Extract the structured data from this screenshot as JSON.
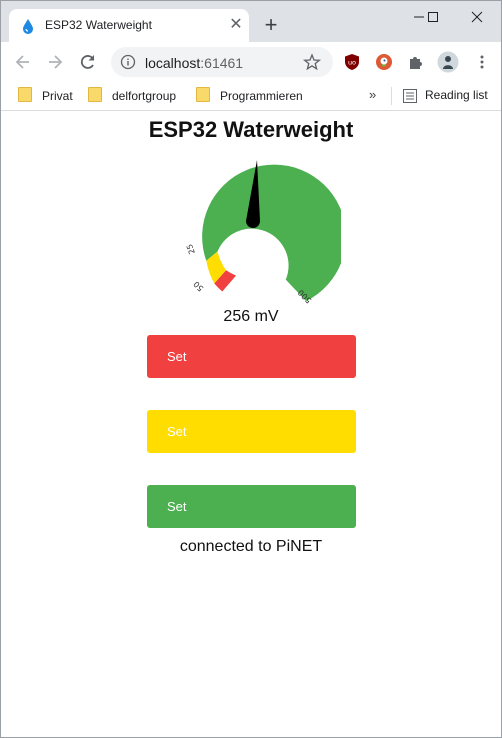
{
  "browser": {
    "tab": {
      "title": "ESP32 Waterweight",
      "favicon": "water-drop-icon"
    },
    "address": {
      "host": "localhost",
      "port": ":61461"
    },
    "bookmarks": [
      {
        "label": "Privat",
        "icon": "folder-icon"
      },
      {
        "label": "delfortgroup",
        "icon": "folder-icon"
      },
      {
        "label": "Programmieren",
        "icon": "folder-icon"
      }
    ],
    "more_bookmarks": "»",
    "reading_list": "Reading list"
  },
  "page": {
    "title": "ESP32 Waterweight",
    "gauge": {
      "value_mv": 256,
      "tick_labels": [
        "25",
        "50",
        "500"
      ],
      "bands": [
        {
          "name": "red",
          "color": "#f04040"
        },
        {
          "name": "yellow",
          "color": "#ffdd00"
        },
        {
          "name": "green",
          "color": "#4caf50"
        }
      ]
    },
    "reading": "256 mV",
    "buttons": [
      {
        "label": "Set",
        "color": "#f04040"
      },
      {
        "label": "Set",
        "color": "#ffdd00"
      },
      {
        "label": "Set",
        "color": "#4caf50"
      }
    ],
    "status": "connected to PiNET"
  }
}
